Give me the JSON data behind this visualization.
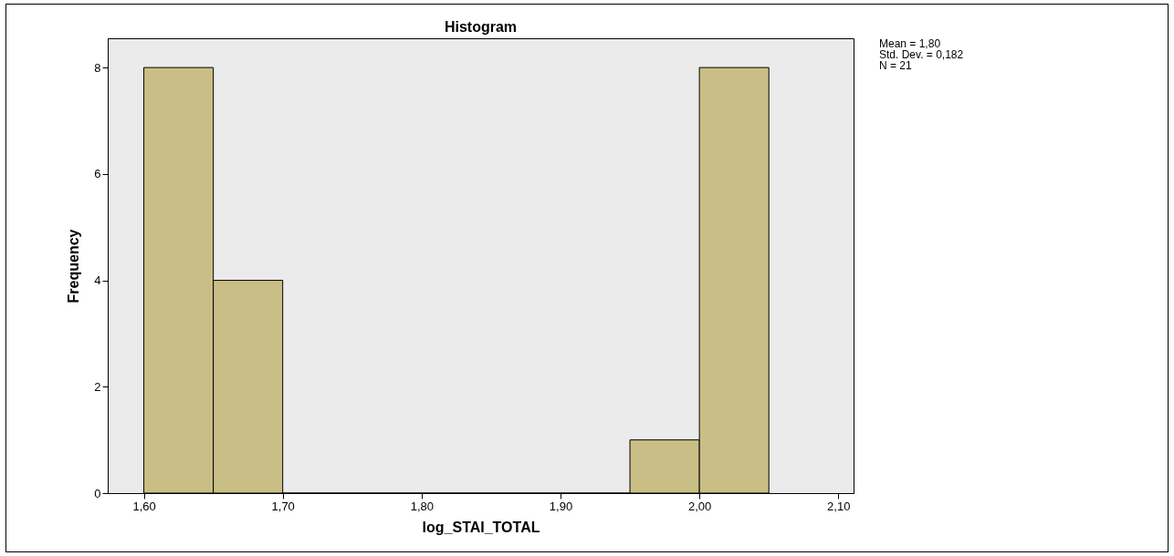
{
  "chart_data": {
    "type": "histogram",
    "title": "Histogram",
    "xlabel": "log_STAI_TOTAL",
    "ylabel": "Frequency",
    "bins": [
      1.6,
      1.65,
      1.7,
      1.75,
      1.8,
      1.85,
      1.9,
      1.95,
      2.0,
      2.05
    ],
    "values": [
      8,
      4,
      0,
      0,
      0,
      0,
      0,
      1,
      8
    ],
    "color": "#c9bf86",
    "xlim": [
      1.574,
      2.111
    ],
    "xticks": [
      {
        "value": 1.6,
        "label": "1,60"
      },
      {
        "value": 1.7,
        "label": "1,70"
      },
      {
        "value": 1.8,
        "label": "1,80"
      },
      {
        "value": 1.9,
        "label": "1,90"
      },
      {
        "value": 2.0,
        "label": "2,00"
      },
      {
        "value": 2.1,
        "label": "2,10"
      }
    ],
    "ylim": [
      0,
      8.55
    ],
    "yticks": [
      0,
      2,
      4,
      6,
      8
    ],
    "grid": false,
    "annotations": [
      "Mean = 1,80",
      "Std. Dev. = 0,182",
      "N = 21"
    ]
  }
}
